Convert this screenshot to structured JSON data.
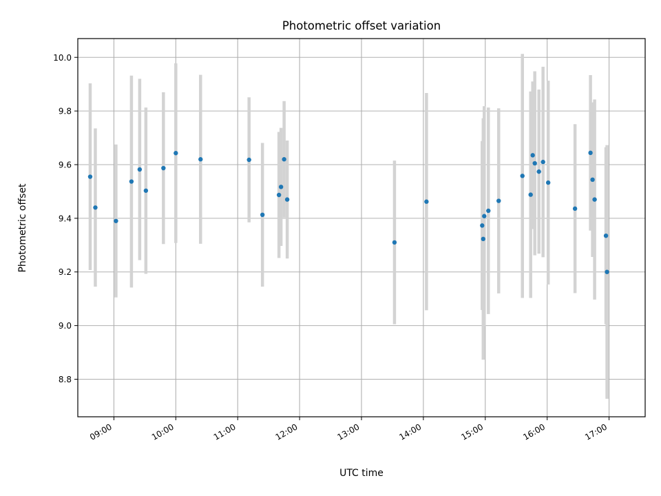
{
  "chart_data": {
    "type": "scatter",
    "title": "Photometric offset variation",
    "xlabel": "UTC time",
    "ylabel": "Photometric offset",
    "x_axis_type": "time",
    "xlim": [
      "08:25",
      "17:35"
    ],
    "ylim": [
      8.66,
      10.07
    ],
    "xticks": [
      "09:00",
      "10:00",
      "11:00",
      "12:00",
      "13:00",
      "14:00",
      "15:00",
      "16:00",
      "17:00"
    ],
    "yticks": [
      8.8,
      9.0,
      9.2,
      9.4,
      9.6,
      9.8,
      10.0
    ],
    "ytick_labels": [
      "8.8",
      "9.0",
      "9.2",
      "9.4",
      "9.6",
      "9.8",
      "10.0"
    ],
    "grid": true,
    "legend": "none",
    "colors": {
      "point": "#1f77b4",
      "errorbar": "#d3d3d3",
      "grid": "#b0b0b0",
      "axes": "#000000"
    },
    "points": [
      {
        "t": "08:37",
        "y": 9.555,
        "err": 0.348
      },
      {
        "t": "08:42",
        "y": 9.44,
        "err": 0.295
      },
      {
        "t": "09:02",
        "y": 9.39,
        "err": 0.285
      },
      {
        "t": "09:17",
        "y": 9.537,
        "err": 0.395
      },
      {
        "t": "09:25",
        "y": 9.582,
        "err": 0.338
      },
      {
        "t": "09:31",
        "y": 9.503,
        "err": 0.31
      },
      {
        "t": "09:48",
        "y": 9.587,
        "err": 0.283
      },
      {
        "t": "10:00",
        "y": 9.643,
        "err": 0.335
      },
      {
        "t": "10:24",
        "y": 9.62,
        "err": 0.315
      },
      {
        "t": "11:11",
        "y": 9.618,
        "err": 0.233
      },
      {
        "t": "11:24",
        "y": 9.413,
        "err": 0.268
      },
      {
        "t": "11:40",
        "y": 9.487,
        "err": 0.235
      },
      {
        "t": "11:42",
        "y": 9.517,
        "err": 0.22
      },
      {
        "t": "11:45",
        "y": 9.62,
        "err": 0.217
      },
      {
        "t": "11:48",
        "y": 9.47,
        "err": 0.22
      },
      {
        "t": "13:32",
        "y": 9.31,
        "err": 0.305
      },
      {
        "t": "14:03",
        "y": 9.462,
        "err": 0.405
      },
      {
        "t": "14:57",
        "y": 9.373,
        "err": 0.315
      },
      {
        "t": "14:58",
        "y": 9.323,
        "err": 0.45
      },
      {
        "t": "14:59",
        "y": 9.408,
        "err": 0.41
      },
      {
        "t": "15:03",
        "y": 9.428,
        "err": 0.385
      },
      {
        "t": "15:13",
        "y": 9.465,
        "err": 0.345
      },
      {
        "t": "15:36",
        "y": 9.558,
        "err": 0.455
      },
      {
        "t": "15:44",
        "y": 9.488,
        "err": 0.385
      },
      {
        "t": "15:46",
        "y": 9.635,
        "err": 0.275
      },
      {
        "t": "15:48",
        "y": 9.605,
        "err": 0.343
      },
      {
        "t": "15:52",
        "y": 9.574,
        "err": 0.306
      },
      {
        "t": "15:56",
        "y": 9.61,
        "err": 0.355
      },
      {
        "t": "16:01",
        "y": 9.533,
        "err": 0.38
      },
      {
        "t": "16:27",
        "y": 9.436,
        "err": 0.315
      },
      {
        "t": "16:42",
        "y": 9.644,
        "err": 0.29
      },
      {
        "t": "16:44",
        "y": 9.544,
        "err": 0.288
      },
      {
        "t": "16:46",
        "y": 9.47,
        "err": 0.373
      },
      {
        "t": "16:57",
        "y": 9.335,
        "err": 0.33
      },
      {
        "t": "16:58",
        "y": 9.2,
        "err": 0.473
      }
    ]
  }
}
